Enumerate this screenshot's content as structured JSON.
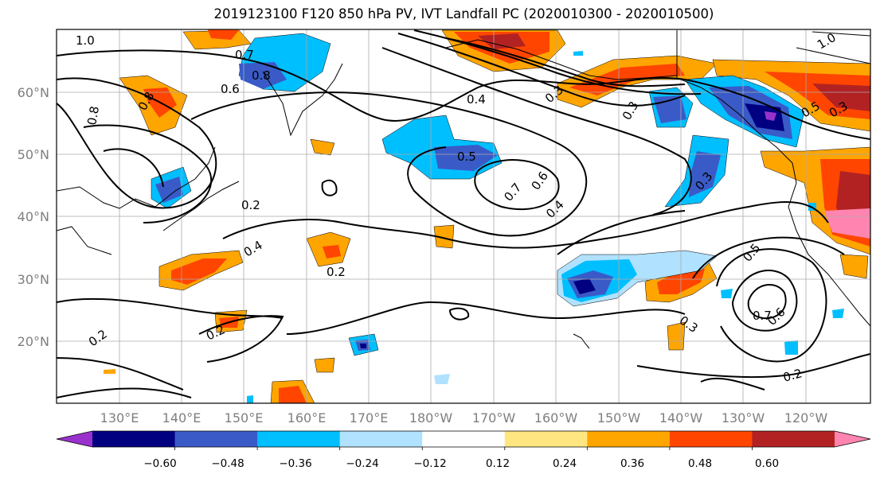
{
  "title": "2019123100 F120 850 hPa PV, IVT Landfall PC (2020010300 - 2020010500)",
  "map": {
    "lon_labels": [
      "130°E",
      "140°E",
      "150°E",
      "160°E",
      "170°E",
      "180°W",
      "170°W",
      "160°W",
      "150°W",
      "140°W",
      "130°W",
      "120°W"
    ],
    "lat_labels": [
      "60°N",
      "50°N",
      "40°N",
      "30°N",
      "20°N"
    ],
    "gridlines": true,
    "projection": "PlateCarree",
    "contour_labels": [
      "1.0",
      "0.8",
      "0.6",
      "0.7",
      "0.8",
      "0.4",
      "0.3",
      "0.5",
      "0.7",
      "0.6",
      "0.4",
      "0.2",
      "0.4",
      "0.2",
      "0.2",
      "0.2",
      "0.3",
      "0.5",
      "0.3",
      "0.7",
      "0.6",
      "0.3",
      "0.2",
      "0.8",
      "0.5",
      "1.0",
      "0.3"
    ]
  },
  "colorbar": {
    "tick_labels": [
      "−0.60",
      "−0.48",
      "−0.36",
      "−0.24",
      "−0.12",
      "0.12",
      "0.24",
      "0.36",
      "0.48",
      "0.60"
    ],
    "colors": [
      "#9932cc",
      "#000080",
      "#3a5bc7",
      "#00bfff",
      "#b0e2ff",
      "#ffffff",
      "#ffe680",
      "#ffa500",
      "#ff4500",
      "#b22222",
      "#ff85b0"
    ],
    "extend": "both"
  }
}
